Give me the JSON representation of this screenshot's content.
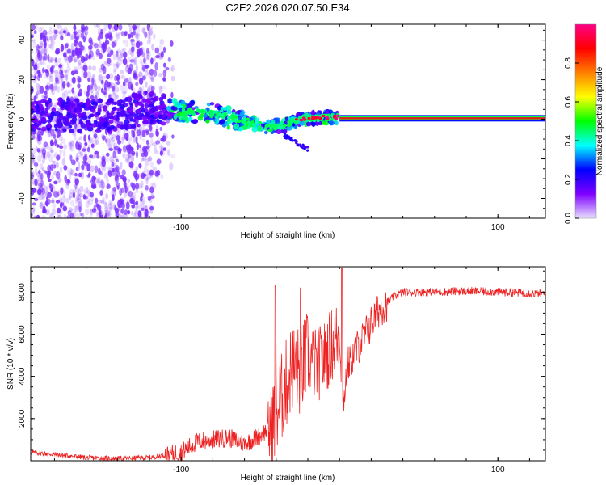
{
  "title": "C2E2.2026.020.07.50.E34",
  "colors": {
    "snr_line": "#ee2222",
    "spectrum_scatter": "#7a2bff",
    "spectrum_line": "#e81a1a",
    "colorbar_stops": [
      "#e8e0ff",
      "#7f00ff",
      "#0000ff",
      "#00ffff",
      "#00ff00",
      "#ffff00",
      "#ff7f00",
      "#ff0000",
      "#ff0088"
    ]
  },
  "chart_data": [
    {
      "type": "heatmap",
      "title": "C2E2.2026.020.07.50.E34",
      "xlabel": "Height of straight line (km)",
      "ylabel": "Frequency (Hz)",
      "xlim": [
        -195,
        130
      ],
      "ylim": [
        -50,
        48
      ],
      "xticks": [
        -100,
        100
      ],
      "yticks": [
        -40,
        -20,
        0,
        20,
        40
      ],
      "colorbar": {
        "label": "Normalized spectral amplitude",
        "range": [
          0,
          1
        ],
        "ticks": [
          "0.0",
          "0.2",
          "0.4",
          "0.6",
          "0.8"
        ]
      },
      "features": [
        {
          "name": "broadband noise region",
          "x_range": [
            -195,
            -117
          ],
          "freq_range": [
            -50,
            48
          ],
          "amplitude": 0.1
        },
        {
          "name": "sparse noise fringe",
          "x_range": [
            -117,
            -105
          ],
          "freq_range": [
            -30,
            40
          ],
          "amplitude": 0.05
        },
        {
          "name": "Doppler trace",
          "points": [
            [
              -150,
              1
            ],
            [
              -120,
              6
            ],
            [
              -100,
              4
            ],
            [
              -80,
              3
            ],
            [
              -60,
              -1
            ],
            [
              -45,
              -4
            ],
            [
              -35,
              -3
            ],
            [
              -25,
              0
            ],
            [
              -10,
              1
            ],
            [
              0,
              1
            ],
            [
              130,
              0.5
            ]
          ],
          "amplitude_range": [
            0.3,
            0.5
          ]
        },
        {
          "name": "trace tail",
          "points": [
            [
              -35,
              -8
            ],
            [
              -20,
              -15
            ]
          ],
          "amplitude": 0.2
        },
        {
          "name": "carrier line",
          "x_range": [
            0,
            130
          ],
          "freq": 0.5,
          "amplitude": 1.0
        }
      ]
    },
    {
      "type": "line",
      "xlabel": "Height of straight line (km)",
      "ylabel": "SNR (10 * v/v)",
      "xlim": [
        -195,
        130
      ],
      "ylim": [
        0,
        9200
      ],
      "xticks": [
        -100,
        100
      ],
      "yticks": [
        2000,
        4000,
        6000,
        8000
      ],
      "series": [
        {
          "name": "SNR",
          "x": [
            -195,
            -180,
            -160,
            -140,
            -120,
            -100,
            -90,
            -80,
            -70,
            -60,
            -50,
            -45,
            -40,
            -35,
            -30,
            -25,
            -20,
            -15,
            -10,
            -5,
            0,
            2,
            5,
            10,
            15,
            20,
            25,
            30,
            35,
            40,
            50,
            60,
            80,
            100,
            120,
            130
          ],
          "y": [
            400,
            300,
            150,
            100,
            150,
            400,
            900,
            1000,
            1100,
            800,
            1200,
            1500,
            2200,
            3300,
            4500,
            4200,
            5000,
            4500,
            4800,
            5500,
            6000,
            2500,
            4500,
            5200,
            5800,
            6500,
            7200,
            7500,
            7800,
            8000,
            8000,
            8000,
            8050,
            8000,
            7950,
            7900
          ]
        }
      ]
    }
  ]
}
